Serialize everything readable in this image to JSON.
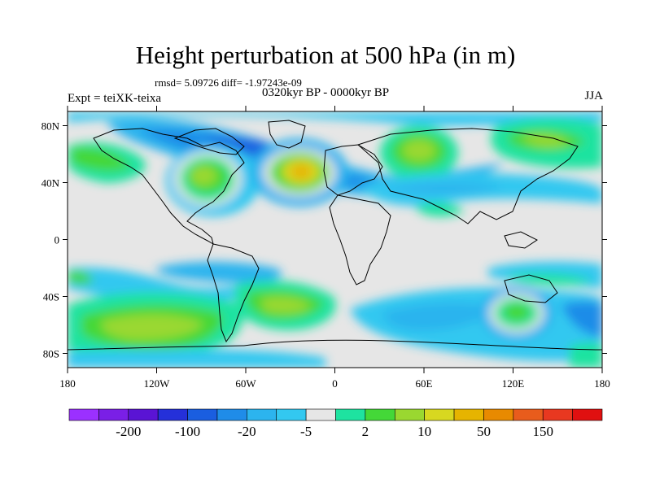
{
  "title": "Height perturbation at 500 hPa (in m)",
  "stats": "rmsd= 5.09726 diff= -1.97243e-09",
  "period": "0320kyr BP - 0000kyr BP",
  "experiment": "Expt = teiXK-teixa",
  "season": "JJA",
  "lat_ticks": [
    "80N",
    "40N",
    "0",
    "40S",
    "80S"
  ],
  "lon_ticks": [
    "180",
    "120W",
    "60W",
    "0",
    "60E",
    "120E",
    "180"
  ],
  "colorbar": {
    "colors": [
      "#9b30ff",
      "#7a1fe6",
      "#5a14d4",
      "#2530d9",
      "#1a5ee0",
      "#1f8ce8",
      "#2cb4ee",
      "#33c8f0",
      "#e6e6e6",
      "#1ee3a0",
      "#44d838",
      "#9ad830",
      "#d8d820",
      "#e6b400",
      "#e88a00",
      "#e85c1c",
      "#e83820",
      "#e01010"
    ],
    "labels": [
      {
        "text": "-200",
        "after": 1
      },
      {
        "text": "-100",
        "after": 3
      },
      {
        "text": "-20",
        "after": 5
      },
      {
        "text": "-5",
        "after": 7
      },
      {
        "text": "2",
        "after": 9
      },
      {
        "text": "10",
        "after": 11
      },
      {
        "text": "50",
        "after": 13
      },
      {
        "text": "150",
        "after": 15
      }
    ]
  }
}
